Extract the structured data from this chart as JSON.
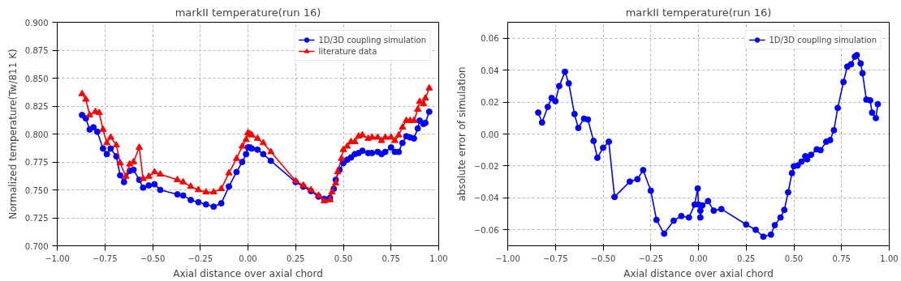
{
  "chart_data": [
    {
      "type": "line",
      "title": "markII temperature(run 16)",
      "xlabel": "Axial distance over axial chord",
      "ylabel": "Normalized temperature(Tw/811 K)",
      "xlim": [
        -1.0,
        1.0
      ],
      "xticks": [
        {
          "value": -1.0,
          "label": "−1.00"
        },
        {
          "value": -0.75,
          "label": "−0.75"
        },
        {
          "value": -0.5,
          "label": "−0.50"
        },
        {
          "value": -0.25,
          "label": "−0.25"
        },
        {
          "value": 0.0,
          "label": "0.00"
        },
        {
          "value": 0.25,
          "label": "0.25"
        },
        {
          "value": 0.5,
          "label": "0.50"
        },
        {
          "value": 0.75,
          "label": "0.75"
        },
        {
          "value": 1.0,
          "label": "1.00"
        }
      ],
      "ylim": [
        0.7,
        0.9
      ],
      "yticks": [
        {
          "value": 0.7,
          "label": "0.700"
        },
        {
          "value": 0.725,
          "label": "0.725"
        },
        {
          "value": 0.75,
          "label": "0.750"
        },
        {
          "value": 0.775,
          "label": "0.775"
        },
        {
          "value": 0.8,
          "label": "0.800"
        },
        {
          "value": 0.825,
          "label": "0.825"
        },
        {
          "value": 0.85,
          "label": "0.850"
        },
        {
          "value": 0.875,
          "label": "0.875"
        },
        {
          "value": 0.9,
          "label": "0.900"
        }
      ],
      "grid": true,
      "legend": "top right",
      "series": [
        {
          "name": "1D/3D coupling simulation",
          "color": "#0000ff",
          "marker": "circle",
          "x": [
            -0.87,
            -0.85,
            -0.83,
            -0.81,
            -0.79,
            -0.76,
            -0.74,
            -0.72,
            -0.69,
            -0.67,
            -0.65,
            -0.62,
            -0.6,
            -0.57,
            -0.55,
            -0.52,
            -0.49,
            -0.46,
            -0.37,
            -0.34,
            -0.3,
            -0.26,
            -0.22,
            -0.18,
            -0.14,
            -0.1,
            -0.06,
            -0.03,
            -0.01,
            0.0,
            0.01,
            0.02,
            0.05,
            0.08,
            0.12,
            0.25,
            0.29,
            0.33,
            0.37,
            0.4,
            0.43,
            0.45,
            0.46,
            0.48,
            0.5,
            0.52,
            0.54,
            0.56,
            0.58,
            0.6,
            0.63,
            0.65,
            0.68,
            0.7,
            0.72,
            0.75,
            0.77,
            0.79,
            0.81,
            0.83,
            0.85,
            0.87,
            0.89,
            0.9,
            0.92,
            0.93,
            0.95
          ],
          "values": [
            0.817,
            0.814,
            0.804,
            0.806,
            0.802,
            0.787,
            0.782,
            0.787,
            0.78,
            0.763,
            0.757,
            0.767,
            0.768,
            0.759,
            0.752,
            0.754,
            0.755,
            0.75,
            0.746,
            0.745,
            0.741,
            0.739,
            0.737,
            0.735,
            0.738,
            0.753,
            0.766,
            0.775,
            0.782,
            0.788,
            0.788,
            0.787,
            0.786,
            0.782,
            0.776,
            0.757,
            0.753,
            0.749,
            0.744,
            0.742,
            0.743,
            0.751,
            0.759,
            0.768,
            0.774,
            0.777,
            0.779,
            0.782,
            0.783,
            0.785,
            0.783,
            0.783,
            0.784,
            0.782,
            0.784,
            0.788,
            0.784,
            0.784,
            0.792,
            0.798,
            0.797,
            0.796,
            0.805,
            0.812,
            0.809,
            0.81,
            0.82
          ]
        },
        {
          "name": "literature data",
          "color": "#ff0000",
          "marker": "triangle",
          "x": [
            -0.87,
            -0.85,
            -0.83,
            -0.8,
            -0.78,
            -0.76,
            -0.74,
            -0.72,
            -0.69,
            -0.67,
            -0.64,
            -0.62,
            -0.6,
            -0.57,
            -0.55,
            -0.52,
            -0.49,
            -0.46,
            -0.37,
            -0.34,
            -0.3,
            -0.26,
            -0.22,
            -0.18,
            -0.14,
            -0.1,
            -0.06,
            -0.03,
            -0.01,
            0.0,
            0.01,
            0.02,
            0.05,
            0.08,
            0.12,
            0.25,
            0.29,
            0.33,
            0.37,
            0.4,
            0.43,
            0.44,
            0.46,
            0.47,
            0.49,
            0.5,
            0.52,
            0.54,
            0.56,
            0.58,
            0.6,
            0.63,
            0.65,
            0.68,
            0.7,
            0.72,
            0.75,
            0.77,
            0.79,
            0.81,
            0.83,
            0.85,
            0.87,
            0.89,
            0.9,
            0.92,
            0.93,
            0.95
          ],
          "values": [
            0.836,
            0.831,
            0.817,
            0.82,
            0.819,
            0.804,
            0.792,
            0.797,
            0.79,
            0.774,
            0.762,
            0.773,
            0.775,
            0.788,
            0.76,
            0.762,
            0.766,
            0.764,
            0.759,
            0.757,
            0.753,
            0.75,
            0.748,
            0.748,
            0.751,
            0.765,
            0.778,
            0.789,
            0.795,
            0.801,
            0.8,
            0.799,
            0.796,
            0.792,
            0.784,
            0.758,
            0.754,
            0.75,
            0.745,
            0.74,
            0.741,
            0.748,
            0.756,
            0.766,
            0.778,
            0.786,
            0.789,
            0.793,
            0.793,
            0.798,
            0.799,
            0.796,
            0.797,
            0.797,
            0.794,
            0.797,
            0.797,
            0.794,
            0.799,
            0.806,
            0.812,
            0.812,
            0.812,
            0.822,
            0.829,
            0.827,
            0.832,
            0.841
          ]
        }
      ]
    },
    {
      "type": "line",
      "title": "markII temperature(run 16)",
      "xlabel": "Axial distance over axial chord",
      "ylabel": "absolute error of simulation",
      "xlim": [
        -1.0,
        1.0
      ],
      "xticks": [
        {
          "value": -1.0,
          "label": "−1.00"
        },
        {
          "value": -0.75,
          "label": "−0.75"
        },
        {
          "value": -0.5,
          "label": "−0.50"
        },
        {
          "value": -0.25,
          "label": "−0.25"
        },
        {
          "value": 0.0,
          "label": "0.00"
        },
        {
          "value": 0.25,
          "label": "0.25"
        },
        {
          "value": 0.5,
          "label": "0.50"
        },
        {
          "value": 0.75,
          "label": "0.75"
        },
        {
          "value": 1.0,
          "label": "1.00"
        }
      ],
      "ylim": [
        -0.07,
        0.07
      ],
      "yticks": [
        {
          "value": -0.06,
          "label": "−0.06"
        },
        {
          "value": -0.04,
          "label": "−0.04"
        },
        {
          "value": -0.02,
          "label": "−0.02"
        },
        {
          "value": 0.0,
          "label": "0.00"
        },
        {
          "value": 0.02,
          "label": "0.02"
        },
        {
          "value": 0.04,
          "label": "0.04"
        },
        {
          "value": 0.06,
          "label": "0.06"
        }
      ],
      "grid": true,
      "legend": "top right",
      "series": [
        {
          "name": "1D/3D coupling simulation",
          "color": "#0000ff",
          "marker": "circle",
          "x": [
            -0.84,
            -0.82,
            -0.79,
            -0.77,
            -0.75,
            -0.73,
            -0.7,
            -0.68,
            -0.65,
            -0.63,
            -0.6,
            -0.58,
            -0.55,
            -0.53,
            -0.5,
            -0.47,
            -0.44,
            -0.36,
            -0.32,
            -0.29,
            -0.25,
            -0.22,
            -0.18,
            -0.13,
            -0.09,
            -0.05,
            -0.02,
            -0.004,
            0.0,
            0.01,
            0.01,
            0.02,
            0.05,
            0.08,
            0.12,
            0.25,
            0.3,
            0.34,
            0.38,
            0.4,
            0.43,
            0.45,
            0.47,
            0.49,
            0.5,
            0.52,
            0.54,
            0.56,
            0.57,
            0.59,
            0.62,
            0.64,
            0.67,
            0.69,
            0.71,
            0.73,
            0.76,
            0.78,
            0.8,
            0.82,
            0.83,
            0.85,
            0.86,
            0.88,
            0.9,
            0.91,
            0.93,
            0.94
          ],
          "values": [
            0.0134,
            0.0072,
            0.017,
            0.0226,
            0.0206,
            0.03,
            0.039,
            0.0317,
            0.0125,
            0.0038,
            0.0096,
            0.0091,
            -0.0043,
            -0.0149,
            -0.0086,
            -0.0048,
            -0.0394,
            -0.0298,
            -0.0283,
            -0.0226,
            -0.0355,
            -0.0538,
            -0.0624,
            -0.0543,
            -0.0514,
            -0.0523,
            -0.0442,
            -0.0341,
            -0.0442,
            -0.048,
            -0.0523,
            -0.0447,
            -0.042,
            -0.048,
            -0.047,
            -0.0567,
            -0.06,
            -0.0643,
            -0.063,
            -0.0571,
            -0.0523,
            -0.0475,
            -0.0365,
            -0.0245,
            -0.0202,
            -0.0197,
            -0.0173,
            -0.0139,
            -0.0158,
            -0.013,
            -0.0096,
            -0.0101,
            -0.0048,
            -0.0038,
            0.0024,
            0.0163,
            0.0326,
            0.0422,
            0.0437,
            0.0485,
            0.0494,
            0.0442,
            0.038,
            0.0216,
            0.0211,
            0.0134,
            0.01,
            0.0187
          ]
        }
      ]
    }
  ]
}
